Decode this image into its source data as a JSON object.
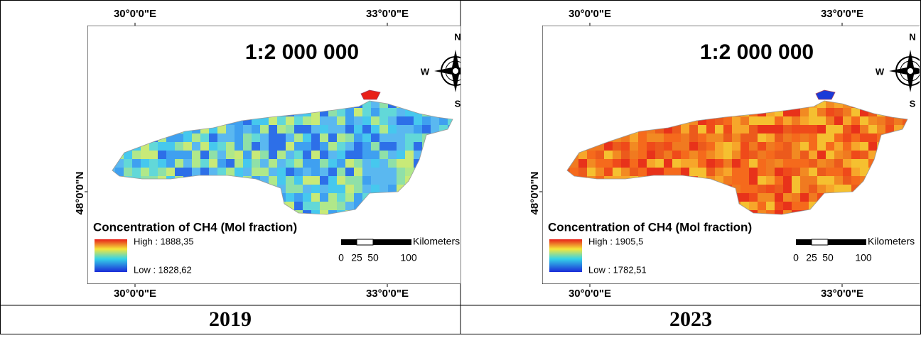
{
  "panels": [
    {
      "top_lon_labels": [
        "30°0'0\"E",
        "33°0'0\"E"
      ],
      "bottom_lon_labels": [
        "30°0'0\"E",
        "33°0'0\"E"
      ],
      "lat_label": "48°0'0\"N",
      "map_scale": "1:2 000 000",
      "compass": {
        "north": "N",
        "west": "W",
        "south": "S"
      },
      "legend": {
        "title": "Concentration of CH4 (Mol fraction)",
        "high": "High : 1888,35",
        "low": "Low : 1828,62"
      },
      "scalebar": {
        "ticks": [
          0,
          25,
          50,
          100
        ],
        "unit": "Kilometers"
      },
      "caption": "2019"
    },
    {
      "top_lon_labels": [
        "30°0'0\"E",
        "33°0'0\"E"
      ],
      "bottom_lon_labels": [
        "30°0'0\"E",
        "33°0'0\"E"
      ],
      "lat_label": "48°0'0\"N",
      "map_scale": "1:2 000 000",
      "compass": {
        "north": "N",
        "west": "W",
        "south": "S"
      },
      "legend": {
        "title": "Concentration of CH4 (Mol fraction)",
        "high": "High : 1905,5",
        "low": "Low : 1782,51"
      },
      "scalebar": {
        "ticks": [
          0,
          25,
          50,
          100
        ],
        "unit": "Kilometers"
      },
      "caption": "2023"
    }
  ]
}
